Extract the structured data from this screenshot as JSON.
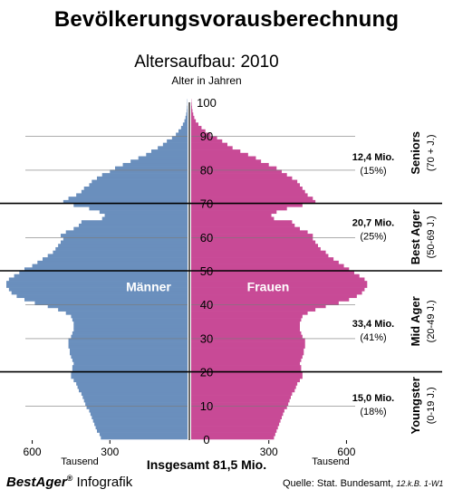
{
  "header": {
    "main_title": "Bevölkerungsvorausberechnung",
    "chart_title": "Altersaufbau: 2010",
    "axis_title": "Alter in Jahren"
  },
  "chart_data": {
    "type": "bar",
    "orientation": "horizontal-population-pyramid",
    "ylim": [
      0,
      100
    ],
    "y_ticks": [
      0,
      10,
      20,
      30,
      40,
      50,
      60,
      70,
      80,
      90,
      100
    ],
    "xlim": [
      0,
      700
    ],
    "x_ticks": [
      300,
      600
    ],
    "x_unit_label": "Tausend",
    "total_label": "Insgesamt 81,5 Mio.",
    "series": [
      {
        "name": "Männer",
        "color": "#6a8fbd",
        "side": "left",
        "values": [
          335,
          340,
          350,
          355,
          360,
          365,
          370,
          375,
          380,
          390,
          395,
          400,
          405,
          410,
          420,
          425,
          430,
          440,
          450,
          450,
          445,
          445,
          440,
          445,
          450,
          455,
          455,
          460,
          460,
          460,
          450,
          445,
          440,
          440,
          440,
          445,
          450,
          470,
          500,
          540,
          590,
          630,
          660,
          680,
          690,
          700,
          700,
          690,
          670,
          650,
          630,
          600,
          580,
          560,
          540,
          520,
          510,
          500,
          490,
          480,
          490,
          470,
          440,
          420,
          410,
          330,
          320,
          340,
          380,
          440,
          480,
          460,
          430,
          410,
          400,
          380,
          370,
          350,
          330,
          300,
          280,
          250,
          220,
          190,
          160,
          140,
          115,
          95,
          80,
          60,
          45,
          35,
          25,
          18,
          12,
          8,
          5,
          3,
          2,
          1,
          1
        ]
      },
      {
        "name": "Frauen",
        "color": "#c84a96",
        "side": "right",
        "values": [
          320,
          325,
          330,
          335,
          340,
          345,
          350,
          355,
          360,
          370,
          375,
          380,
          385,
          390,
          400,
          405,
          410,
          420,
          430,
          430,
          425,
          425,
          420,
          425,
          430,
          435,
          435,
          440,
          440,
          440,
          430,
          425,
          420,
          420,
          420,
          425,
          430,
          450,
          480,
          520,
          570,
          610,
          640,
          660,
          670,
          680,
          680,
          670,
          650,
          630,
          610,
          590,
          570,
          550,
          530,
          520,
          500,
          490,
          480,
          470,
          470,
          450,
          420,
          400,
          390,
          320,
          310,
          330,
          370,
          430,
          480,
          470,
          450,
          440,
          430,
          420,
          410,
          390,
          370,
          350,
          330,
          300,
          270,
          250,
          220,
          190,
          160,
          140,
          120,
          100,
          75,
          55,
          40,
          28,
          18,
          12,
          8,
          5,
          3,
          2,
          1
        ]
      }
    ],
    "separator_ages": [
      20,
      50,
      70
    ],
    "segments": [
      {
        "group": "Youngster",
        "range": "(0-19 J.)",
        "value": "15,0 Mio.",
        "share": "(18%)",
        "y_from": 0,
        "y_to": 20,
        "label_age": 10.5
      },
      {
        "group": "Mid Ager",
        "range": "(20-49 J.)",
        "value": "33,4 Mio.",
        "share": "(41%)",
        "y_from": 20,
        "y_to": 50,
        "label_age": 32.5
      },
      {
        "group": "Best Ager",
        "range": "(50-69 J.)",
        "value": "20,7 Mio.",
        "share": "(25%)",
        "y_from": 50,
        "y_to": 70,
        "label_age": 62.5
      },
      {
        "group": "Seniors",
        "range": "(70 + J.)",
        "value": "12,4 Mio.",
        "share": "(15%)",
        "y_from": 70,
        "y_to": 100,
        "label_age": 82
      }
    ]
  },
  "footer": {
    "brand": "BestAger",
    "brand_mark": "®",
    "brand_suffix": " Infografik",
    "source_label": "Quelle: Stat. Bundesamt, ",
    "source_ref": "12.k.B. 1-W1"
  }
}
